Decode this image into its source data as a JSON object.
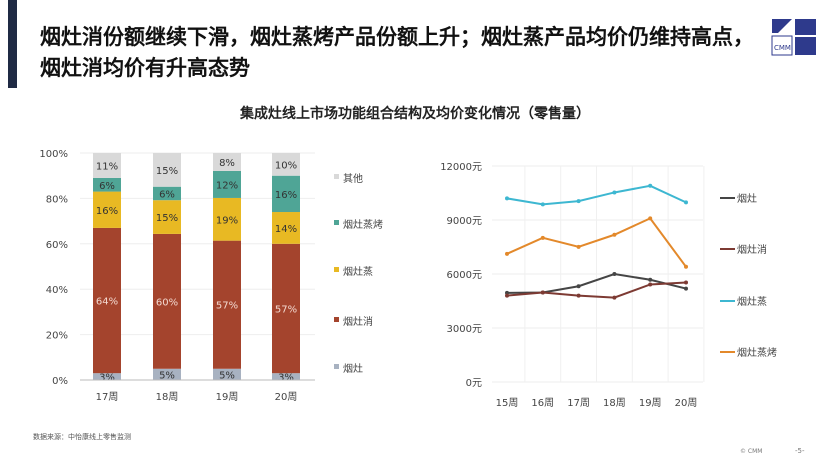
{
  "header": {
    "title": "烟灶消份额继续下滑，烟灶蒸烤产品份额上升；烟灶蒸产品均价仍维持高点，烟灶消均价有升高态势",
    "logo_text": "CMM"
  },
  "subtitle": "集成灶线上市场功能组合结构及均价变化情况（零售量）",
  "footer": {
    "source": "数据来源：中怡康线上零售监测",
    "copyright": "© CMM",
    "page": "-5-"
  },
  "colors": {
    "accent": "#1f2a44",
    "logo": "#2e3a8c"
  },
  "chart_data": [
    {
      "type": "bar",
      "stacked": true,
      "categories": [
        "17周",
        "18周",
        "19周",
        "20周"
      ],
      "ylim": [
        0,
        100
      ],
      "yticks": [
        "0%",
        "20%",
        "40%",
        "60%",
        "80%",
        "100%"
      ],
      "grid": true,
      "legend_position": "right",
      "series": [
        {
          "name": "烟灶",
          "color": "#a8b2c1",
          "values": [
            3,
            5,
            5,
            3
          ],
          "labels": [
            "3%",
            "5%",
            "5%",
            "3%"
          ]
        },
        {
          "name": "烟灶消",
          "color": "#a4442d",
          "values": [
            64,
            60,
            57,
            57
          ],
          "labels": [
            "64%",
            "60%",
            "57%",
            "57%"
          ]
        },
        {
          "name": "烟灶蒸",
          "color": "#e8b923",
          "values": [
            16,
            15,
            19,
            14
          ],
          "labels": [
            "16%",
            "15%",
            "19%",
            "14%"
          ]
        },
        {
          "name": "烟灶蒸烤",
          "color": "#4fa596",
          "values": [
            6,
            6,
            12,
            16
          ],
          "labels": [
            "6%",
            "6%",
            "12%",
            "16%"
          ]
        },
        {
          "name": "其他",
          "color": "#d9d9d9",
          "values": [
            11,
            15,
            8,
            10
          ],
          "labels": [
            "11%",
            "15%",
            "8%",
            "10%"
          ]
        }
      ],
      "legend_order": [
        "其他",
        "烟灶蒸烤",
        "烟灶蒸",
        "烟灶消",
        "烟灶"
      ]
    },
    {
      "type": "line",
      "categories": [
        "15周",
        "16周",
        "17周",
        "18周",
        "19周",
        "20周"
      ],
      "ylim": [
        0,
        12000
      ],
      "yticks": [
        "0元",
        "3000元",
        "6000元",
        "9000元",
        "12000元"
      ],
      "grid": true,
      "legend_position": "right",
      "series": [
        {
          "name": "烟灶",
          "color": "#454545",
          "values": [
            4950,
            4970,
            5320,
            6000,
            5680,
            5190
          ]
        },
        {
          "name": "烟灶消",
          "color": "#7d3a33",
          "values": [
            4800,
            4970,
            4800,
            4690,
            5420,
            5530
          ]
        },
        {
          "name": "烟灶蒸",
          "color": "#3db7d1",
          "values": [
            10200,
            9870,
            10050,
            10530,
            10900,
            9980
          ]
        },
        {
          "name": "烟灶蒸烤",
          "color": "#e3892b",
          "values": [
            7120,
            8010,
            7510,
            8180,
            9090,
            6400
          ]
        }
      ]
    }
  ]
}
